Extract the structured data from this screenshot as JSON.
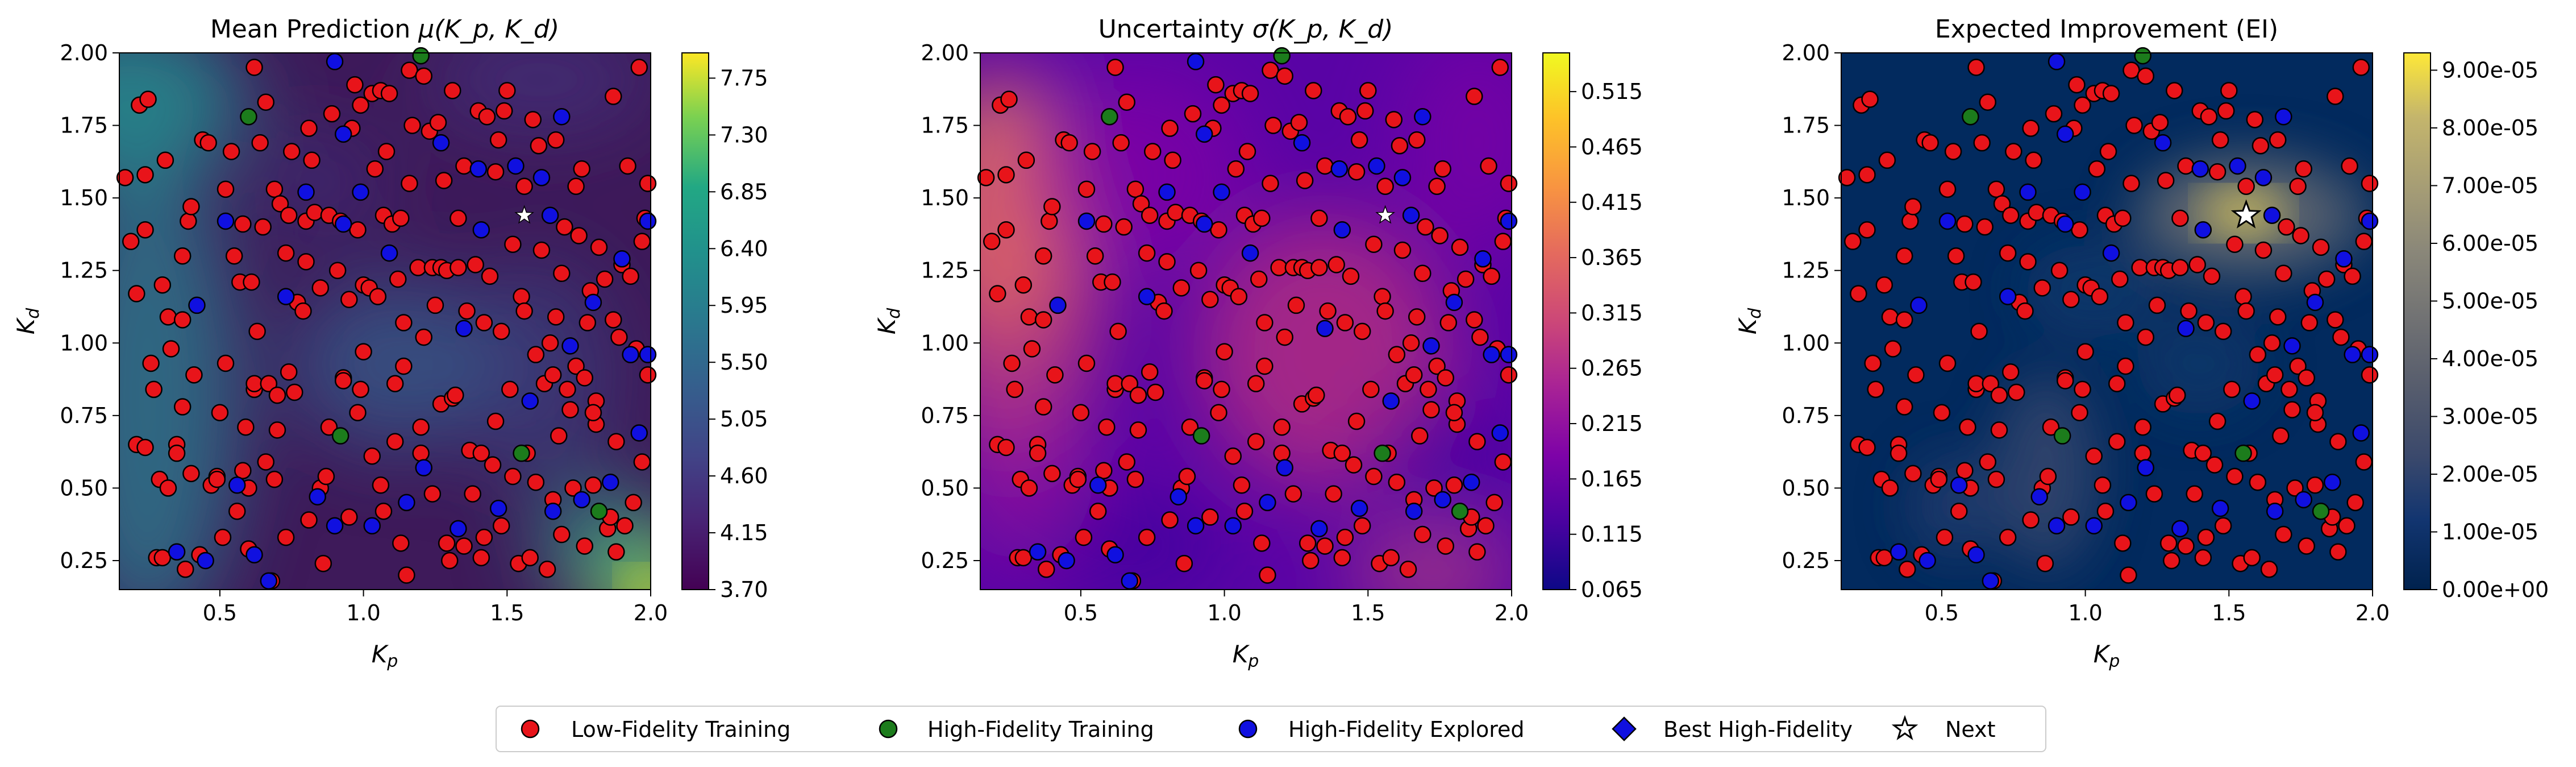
{
  "chart_data": [
    {
      "type": "heatmap",
      "title": "Mean Prediction μ(K_p, K_d)",
      "title_main": "Mean Prediction ",
      "title_math": "μ(K_p, K_d)",
      "xlabel": "K_p",
      "ylabel": "K_d",
      "xlim": [
        0.15,
        2.0
      ],
      "ylim": [
        0.15,
        2.0
      ],
      "x_ticks": [
        "0.5",
        "1.0",
        "1.5",
        "2.0"
      ],
      "y_ticks": [
        "0.25",
        "0.50",
        "0.75",
        "1.00",
        "1.25",
        "1.50",
        "1.75",
        "2.00"
      ],
      "colormap": "viridis",
      "colorbar_range": [
        3.7,
        7.95
      ],
      "colorbar_ticks": [
        "3.70",
        "4.15",
        "4.60",
        "5.05",
        "5.50",
        "5.95",
        "6.40",
        "6.85",
        "7.30",
        "7.75"
      ],
      "star_color": "#ffffff"
    },
    {
      "type": "heatmap",
      "title": "Uncertainty σ(K_p, K_d)",
      "title_main": "Uncertainty ",
      "title_math": "σ(K_p, K_d)",
      "xlabel": "K_p",
      "ylabel": "K_d",
      "xlim": [
        0.15,
        2.0
      ],
      "ylim": [
        0.15,
        2.0
      ],
      "x_ticks": [
        "0.5",
        "1.0",
        "1.5",
        "2.0"
      ],
      "y_ticks": [
        "0.25",
        "0.50",
        "0.75",
        "1.00",
        "1.25",
        "1.50",
        "1.75",
        "2.00"
      ],
      "colormap": "plasma",
      "colorbar_range": [
        0.065,
        0.55
      ],
      "colorbar_ticks": [
        "0.065",
        "0.115",
        "0.165",
        "0.215",
        "0.265",
        "0.315",
        "0.365",
        "0.415",
        "0.465",
        "0.515"
      ],
      "star_color": "#ffffff"
    },
    {
      "type": "heatmap",
      "title": "Expected Improvement (EI)",
      "title_main": "Expected Improvement (EI)",
      "title_math": "",
      "xlabel": "K_p",
      "ylabel": "K_d",
      "xlim": [
        0.15,
        2.0
      ],
      "ylim": [
        0.15,
        2.0
      ],
      "x_ticks": [
        "0.5",
        "1.0",
        "1.5",
        "2.0"
      ],
      "y_ticks": [
        "0.25",
        "0.50",
        "0.75",
        "1.00",
        "1.25",
        "1.50",
        "1.75",
        "2.00"
      ],
      "colormap": "cividis",
      "colorbar_range": [
        0.0,
        9.3e-05
      ],
      "colorbar_ticks": [
        "0.00e+00",
        "1.00e-05",
        "2.00e-05",
        "3.00e-05",
        "4.00e-05",
        "5.00e-05",
        "6.00e-05",
        "7.00e-05",
        "8.00e-05",
        "9.00e-05"
      ],
      "star_color": "#ffffff"
    }
  ],
  "points": {
    "low_fidelity": [
      [
        0.17,
        1.57
      ],
      [
        0.19,
        1.35
      ],
      [
        0.21,
        1.17
      ],
      [
        0.21,
        0.65
      ],
      [
        0.22,
        1.82
      ],
      [
        0.24,
        1.39
      ],
      [
        0.24,
        0.64
      ],
      [
        0.24,
        1.58
      ],
      [
        0.25,
        1.84
      ],
      [
        0.26,
        0.93
      ],
      [
        0.27,
        0.84
      ],
      [
        0.28,
        0.26
      ],
      [
        0.29,
        0.53
      ],
      [
        0.3,
        0.26
      ],
      [
        0.3,
        1.2
      ],
      [
        0.31,
        1.63
      ],
      [
        0.32,
        1.09
      ],
      [
        0.32,
        0.5
      ],
      [
        0.33,
        0.98
      ],
      [
        0.35,
        0.65
      ],
      [
        0.35,
        0.62
      ],
      [
        0.37,
        0.78
      ],
      [
        0.37,
        1.08
      ],
      [
        0.37,
        1.3
      ],
      [
        0.38,
        0.22
      ],
      [
        0.39,
        1.42
      ],
      [
        0.4,
        0.55
      ],
      [
        0.4,
        1.47
      ],
      [
        0.41,
        0.89
      ],
      [
        0.43,
        0.27
      ],
      [
        0.44,
        1.7
      ],
      [
        0.46,
        1.69
      ],
      [
        0.47,
        0.51
      ],
      [
        0.49,
        0.54
      ],
      [
        0.49,
        0.53
      ],
      [
        0.51,
        0.33
      ],
      [
        0.5,
        0.76
      ],
      [
        0.52,
        0.93
      ],
      [
        0.52,
        1.53
      ],
      [
        0.54,
        1.66
      ],
      [
        0.55,
        1.3
      ],
      [
        0.56,
        0.42
      ],
      [
        0.57,
        1.21
      ],
      [
        0.58,
        0.56
      ],
      [
        0.58,
        1.41
      ],
      [
        0.59,
        0.71
      ],
      [
        0.6,
        0.29
      ],
      [
        0.6,
        0.5
      ],
      [
        0.61,
        1.21
      ],
      [
        0.62,
        1.95
      ],
      [
        0.62,
        0.84
      ],
      [
        0.62,
        0.86
      ],
      [
        0.63,
        1.04
      ],
      [
        0.64,
        1.69
      ],
      [
        0.65,
        1.4
      ],
      [
        0.66,
        0.59
      ],
      [
        0.66,
        1.83
      ],
      [
        0.67,
        0.86
      ],
      [
        0.68,
        0.18
      ],
      [
        0.69,
        1.53
      ],
      [
        0.69,
        0.53
      ],
      [
        0.7,
        0.7
      ],
      [
        0.7,
        0.82
      ],
      [
        0.71,
        1.48
      ],
      [
        0.73,
        0.33
      ],
      [
        0.73,
        1.31
      ],
      [
        0.74,
        1.44
      ],
      [
        0.74,
        0.9
      ],
      [
        0.75,
        1.66
      ],
      [
        0.76,
        0.83
      ],
      [
        0.77,
        1.14
      ],
      [
        0.79,
        1.11
      ],
      [
        0.8,
        1.28
      ],
      [
        0.8,
        1.42
      ],
      [
        0.81,
        1.74
      ],
      [
        0.81,
        0.39
      ],
      [
        0.82,
        1.63
      ],
      [
        0.83,
        1.45
      ],
      [
        0.85,
        0.5
      ],
      [
        0.85,
        1.19
      ],
      [
        0.86,
        0.24
      ],
      [
        0.87,
        0.54
      ],
      [
        0.88,
        0.71
      ],
      [
        0.88,
        1.44
      ],
      [
        0.89,
        1.79
      ],
      [
        0.91,
        1.25
      ],
      [
        0.92,
        1.42
      ],
      [
        0.93,
        0.88
      ],
      [
        0.93,
        0.87
      ],
      [
        0.95,
        1.15
      ],
      [
        0.95,
        0.4
      ],
      [
        0.96,
        1.74
      ],
      [
        0.97,
        1.89
      ],
      [
        0.98,
        0.76
      ],
      [
        0.98,
        1.39
      ],
      [
        0.99,
        0.84
      ],
      [
        0.99,
        1.82
      ],
      [
        1.0,
        0.97
      ],
      [
        1.0,
        1.2
      ],
      [
        1.02,
        1.19
      ],
      [
        1.03,
        1.86
      ],
      [
        1.03,
        0.61
      ],
      [
        1.04,
        1.6
      ],
      [
        1.05,
        1.16
      ],
      [
        1.06,
        1.87
      ],
      [
        1.06,
        0.51
      ],
      [
        1.07,
        0.42
      ],
      [
        1.07,
        1.44
      ],
      [
        1.08,
        1.66
      ],
      [
        1.09,
        1.86
      ],
      [
        1.1,
        1.41
      ],
      [
        1.11,
        0.86
      ],
      [
        1.11,
        0.66
      ],
      [
        1.12,
        1.22
      ],
      [
        1.13,
        1.43
      ],
      [
        1.13,
        0.31
      ],
      [
        1.14,
        0.92
      ],
      [
        1.14,
        1.07
      ],
      [
        1.15,
        0.2
      ],
      [
        1.16,
        1.94
      ],
      [
        1.16,
        1.55
      ],
      [
        1.17,
        1.75
      ],
      [
        1.19,
        1.26
      ],
      [
        1.2,
        0.71
      ],
      [
        1.2,
        0.62
      ],
      [
        1.21,
        1.02
      ],
      [
        1.21,
        1.92
      ],
      [
        1.23,
        1.73
      ],
      [
        1.24,
        1.26
      ],
      [
        1.24,
        0.48
      ],
      [
        1.25,
        1.13
      ],
      [
        1.26,
        1.76
      ],
      [
        1.27,
        1.26
      ],
      [
        1.27,
        0.79
      ],
      [
        1.28,
        1.56
      ],
      [
        1.29,
        0.31
      ],
      [
        1.29,
        1.25
      ],
      [
        1.3,
        0.25
      ],
      [
        1.31,
        1.87
      ],
      [
        1.31,
        0.81
      ],
      [
        1.32,
        0.82
      ],
      [
        1.33,
        1.26
      ],
      [
        1.33,
        1.43
      ],
      [
        1.35,
        1.61
      ],
      [
        1.35,
        0.3
      ],
      [
        1.36,
        1.11
      ],
      [
        1.37,
        0.63
      ],
      [
        1.38,
        0.48
      ],
      [
        1.39,
        1.27
      ],
      [
        1.4,
        1.8
      ],
      [
        1.41,
        0.26
      ],
      [
        1.41,
        0.62
      ],
      [
        1.42,
        1.07
      ],
      [
        1.42,
        0.33
      ],
      [
        1.43,
        1.78
      ],
      [
        1.44,
        1.23
      ],
      [
        1.45,
        0.58
      ],
      [
        1.46,
        0.73
      ],
      [
        1.46,
        1.59
      ],
      [
        1.47,
        1.7
      ],
      [
        1.48,
        1.04
      ],
      [
        1.48,
        0.37
      ],
      [
        1.49,
        1.8
      ],
      [
        1.5,
        1.87
      ],
      [
        1.51,
        0.84
      ],
      [
        1.52,
        0.54
      ],
      [
        1.52,
        1.34
      ],
      [
        1.54,
        0.24
      ],
      [
        1.55,
        1.16
      ],
      [
        1.56,
        1.54
      ],
      [
        1.56,
        1.11
      ],
      [
        1.57,
        0.62
      ],
      [
        1.58,
        0.26
      ],
      [
        1.59,
        1.77
      ],
      [
        1.6,
        0.96
      ],
      [
        1.6,
        0.52
      ],
      [
        1.61,
        1.68
      ],
      [
        1.62,
        1.32
      ],
      [
        1.63,
        0.86
      ],
      [
        1.64,
        0.22
      ],
      [
        1.65,
        1.0
      ],
      [
        1.66,
        0.46
      ],
      [
        1.66,
        0.89
      ],
      [
        1.67,
        1.7
      ],
      [
        1.67,
        1.09
      ],
      [
        1.68,
        0.68
      ],
      [
        1.69,
        1.24
      ],
      [
        1.69,
        0.34
      ],
      [
        1.7,
        1.4
      ],
      [
        1.71,
        0.84
      ],
      [
        1.72,
        0.77
      ],
      [
        1.73,
        0.5
      ],
      [
        1.74,
        1.54
      ],
      [
        1.74,
        0.92
      ],
      [
        1.75,
        1.37
      ],
      [
        1.76,
        1.6
      ],
      [
        1.77,
        0.3
      ],
      [
        1.77,
        0.88
      ],
      [
        1.78,
        1.07
      ],
      [
        1.79,
        1.18
      ],
      [
        1.8,
        0.51
      ],
      [
        1.81,
        0.72
      ],
      [
        1.81,
        0.8
      ],
      [
        1.82,
        1.33
      ],
      [
        1.84,
        1.22
      ],
      [
        1.85,
        0.36
      ],
      [
        1.86,
        0.4
      ],
      [
        1.87,
        1.85
      ],
      [
        1.87,
        1.08
      ],
      [
        1.88,
        0.66
      ],
      [
        1.88,
        0.28
      ],
      [
        1.89,
        1.02
      ],
      [
        1.9,
        1.27
      ],
      [
        1.91,
        0.37
      ],
      [
        1.92,
        1.61
      ],
      [
        1.93,
        1.23
      ],
      [
        1.94,
        0.45
      ],
      [
        1.95,
        0.98
      ],
      [
        1.96,
        1.95
      ],
      [
        1.97,
        0.59
      ],
      [
        1.97,
        1.35
      ],
      [
        1.98,
        1.43
      ],
      [
        1.99,
        0.89
      ],
      [
        1.99,
        1.55
      ],
      [
        1.8,
        0.76
      ]
    ],
    "high_fidelity": [
      [
        0.6,
        1.78
      ],
      [
        0.92,
        0.68
      ],
      [
        1.2,
        1.99
      ],
      [
        1.55,
        0.62
      ],
      [
        1.82,
        0.42
      ]
    ],
    "high_fidelity_explored": [
      [
        0.35,
        0.28
      ],
      [
        0.42,
        1.13
      ],
      [
        0.45,
        0.25
      ],
      [
        0.52,
        1.42
      ],
      [
        0.56,
        0.51
      ],
      [
        0.62,
        0.27
      ],
      [
        0.67,
        0.18
      ],
      [
        0.73,
        1.16
      ],
      [
        0.8,
        1.52
      ],
      [
        0.84,
        0.47
      ],
      [
        0.9,
        0.37
      ],
      [
        0.93,
        1.41
      ],
      [
        0.99,
        1.52
      ],
      [
        1.03,
        0.37
      ],
      [
        1.09,
        1.31
      ],
      [
        1.15,
        0.45
      ],
      [
        1.21,
        0.57
      ],
      [
        1.27,
        1.69
      ],
      [
        1.33,
        0.36
      ],
      [
        1.41,
        1.39
      ],
      [
        1.47,
        0.43
      ],
      [
        1.53,
        1.61
      ],
      [
        1.58,
        0.8
      ],
      [
        1.62,
        1.57
      ],
      [
        1.66,
        0.42
      ],
      [
        1.69,
        1.78
      ],
      [
        1.72,
        0.99
      ],
      [
        1.76,
        0.46
      ],
      [
        1.8,
        1.14
      ],
      [
        1.86,
        0.52
      ],
      [
        1.9,
        1.29
      ],
      [
        1.93,
        0.96
      ],
      [
        1.96,
        0.69
      ],
      [
        1.99,
        1.42
      ],
      [
        1.99,
        0.96
      ],
      [
        1.4,
        1.6
      ],
      [
        1.65,
        1.44
      ],
      [
        1.35,
        1.05
      ],
      [
        0.93,
        1.72
      ],
      [
        0.9,
        1.97
      ]
    ],
    "next": [
      1.56,
      1.44
    ]
  },
  "legend": {
    "low_fidelity": "Low-Fidelity Training",
    "high_fidelity": "High-Fidelity Training",
    "high_fidelity_explored": "High-Fidelity Explored",
    "best_high_fidelity": "Best High-Fidelity",
    "next": "Next"
  },
  "colors": {
    "low_fidelity": "#e8141a",
    "high_fidelity": "#1c7c1c",
    "high_fidelity_explored": "#1010e0",
    "best_high_fidelity": "#1010e0",
    "marker_edge": "#000000"
  }
}
